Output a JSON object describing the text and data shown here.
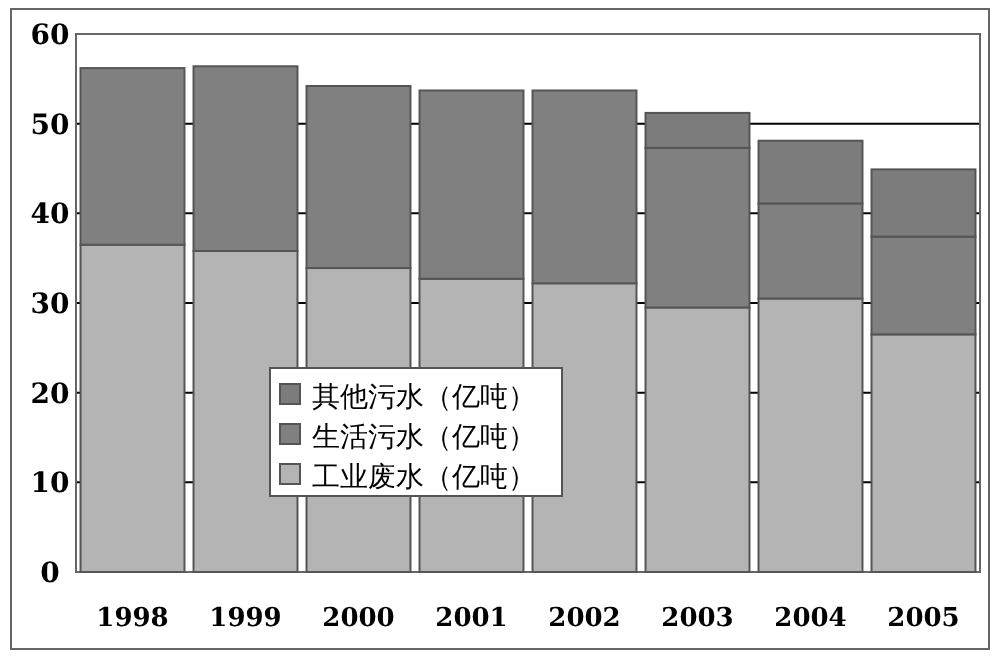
{
  "chart_data": {
    "type": "bar",
    "stacked": true,
    "categories": [
      "1998",
      "1999",
      "2000",
      "2001",
      "2002",
      "2003",
      "2004",
      "2005"
    ],
    "series": [
      {
        "name": "工业废水（亿吨）",
        "color": "#b4b4b4",
        "values": [
          36.5,
          35.8,
          33.9,
          32.7,
          32.2,
          29.5,
          30.5,
          26.5
        ]
      },
      {
        "name": "生活污水（亿吨）",
        "color": "#808080",
        "values": [
          19.7,
          20.6,
          20.3,
          21.0,
          21.5,
          17.8,
          10.6,
          10.9
        ]
      },
      {
        "name": "其他污水（亿吨）",
        "color": "#7c7c7c",
        "values": [
          0,
          0,
          0,
          0,
          0,
          3.9,
          7.0,
          7.5
        ]
      }
    ],
    "ylim": [
      0,
      60
    ],
    "yticks": [
      0,
      10,
      20,
      30,
      40,
      50,
      60
    ],
    "grid": "y",
    "legend": "center left"
  }
}
